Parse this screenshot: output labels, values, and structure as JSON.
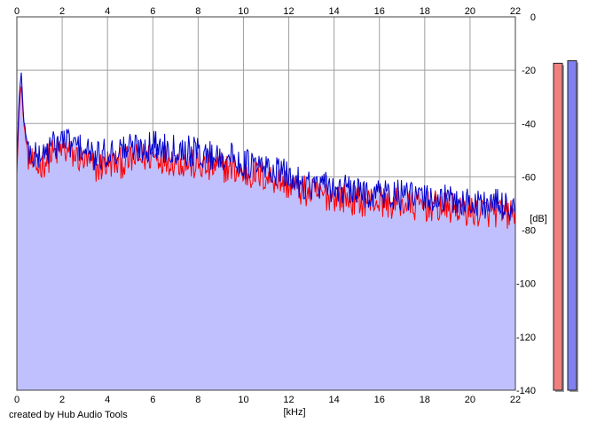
{
  "credit": "created by Hub Audio Tools",
  "chart_data": {
    "type": "area",
    "xlabel": "[kHz]",
    "ylabel": "[dB]",
    "xlim": [
      0,
      22
    ],
    "ylim": [
      -140,
      0
    ],
    "x_ticks": [
      0,
      2,
      4,
      6,
      8,
      10,
      12,
      14,
      16,
      18,
      20,
      22
    ],
    "y_ticks": [
      0,
      -20,
      -40,
      -60,
      -80,
      -100,
      -120,
      -140
    ],
    "grid": true,
    "colors": {
      "fill": "#c0c0ff",
      "red_channel": "#ff0000",
      "blue_channel": "#0000cc",
      "grid": "#a0a0a0",
      "meter_left": "#f08080",
      "meter_right": "#8080f0"
    },
    "series": [
      {
        "color": "#ff0000",
        "x": [
          0,
          0.1,
          0.2,
          0.3,
          0.5,
          0.8,
          1.0,
          1.5,
          2.0,
          2.5,
          3.0,
          3.5,
          4.0,
          4.5,
          5.0,
          5.5,
          6.0,
          6.5,
          7.0,
          7.5,
          8.0,
          8.5,
          9.0,
          9.5,
          10.0,
          10.5,
          11.0,
          11.5,
          12.0,
          12.5,
          13.0,
          13.5,
          14.0,
          14.5,
          15.0,
          15.5,
          16.0,
          16.5,
          17.0,
          17.5,
          18.0,
          18.5,
          19.0,
          19.5,
          20.0,
          20.5,
          21.0,
          21.5,
          22.0
        ],
        "values": [
          -58,
          -35,
          -25,
          -40,
          -52,
          -57,
          -56,
          -52,
          -50,
          -52,
          -54,
          -57,
          -55,
          -55,
          -54,
          -53,
          -52,
          -53,
          -54,
          -55,
          -56,
          -57,
          -56,
          -57,
          -59,
          -59,
          -60,
          -61,
          -63,
          -65,
          -66,
          -67,
          -67,
          -68,
          -69,
          -69,
          -69,
          -70,
          -70,
          -71,
          -71,
          -71,
          -72,
          -72,
          -73,
          -73,
          -73,
          -74,
          -74
        ]
      },
      {
        "color": "#0000cc",
        "x": [
          0,
          0.1,
          0.2,
          0.3,
          0.5,
          0.8,
          1.0,
          1.5,
          2.0,
          2.5,
          3.0,
          3.5,
          4.0,
          4.5,
          5.0,
          5.5,
          6.0,
          6.5,
          7.0,
          7.5,
          8.0,
          8.5,
          9.0,
          9.5,
          10.0,
          10.5,
          11.0,
          11.5,
          12.0,
          12.5,
          13.0,
          13.5,
          14.0,
          14.5,
          15.0,
          15.5,
          16.0,
          16.5,
          17.0,
          17.5,
          18.0,
          18.5,
          19.0,
          19.5,
          20.0,
          20.5,
          21.0,
          21.5,
          22.0
        ],
        "values": [
          -55,
          -30,
          -21,
          -38,
          -50,
          -53,
          -52,
          -49,
          -46,
          -48,
          -50,
          -53,
          -51,
          -50,
          -49,
          -49,
          -48,
          -49,
          -49,
          -50,
          -51,
          -52,
          -52,
          -53,
          -55,
          -56,
          -57,
          -58,
          -60,
          -62,
          -63,
          -64,
          -64,
          -65,
          -66,
          -66,
          -66,
          -67,
          -67,
          -68,
          -68,
          -68,
          -69,
          -69,
          -70,
          -70,
          -70,
          -71,
          -71
        ]
      }
    ],
    "level_meters": [
      {
        "color": "#f08080",
        "value": -10
      },
      {
        "color": "#8080f0",
        "value": -9
      }
    ]
  }
}
